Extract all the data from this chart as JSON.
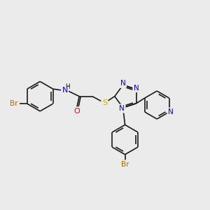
{
  "bg_color": "#ebebeb",
  "bond_color": "#1a1a1a",
  "N_color": "#0000ff",
  "O_color": "#ff0000",
  "S_color": "#ccaa00",
  "Br_color": "#cc6600",
  "H_color": "#404040",
  "line_width": 1.2,
  "font_size": 7.5,
  "fig_size": [
    3.0,
    3.0
  ],
  "dpi": 100,
  "xlim": [
    0,
    10
  ],
  "ylim": [
    0,
    10
  ]
}
